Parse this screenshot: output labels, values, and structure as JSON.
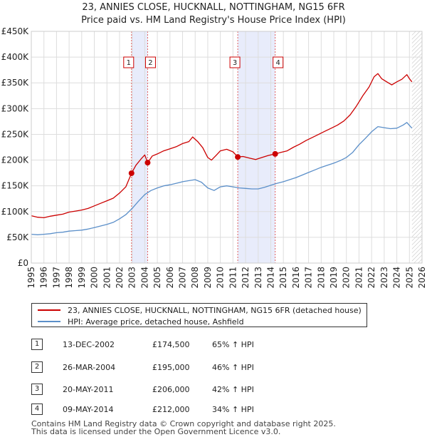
{
  "chart_data": {
    "type": "line",
    "title": "23, ANNIES CLOSE, HUCKNALL, NOTTINGHAM, NG15 6FR",
    "subtitle": "Price paid vs. HM Land Registry's House Price Index (HPI)",
    "xlabel": "",
    "ylabel": "",
    "xlim": [
      1995,
      2026
    ],
    "ylim": [
      0,
      450000
    ],
    "y_ticks": [
      {
        "value": 0,
        "label": "£0"
      },
      {
        "value": 50000,
        "label": "£50K"
      },
      {
        "value": 100000,
        "label": "£100K"
      },
      {
        "value": 150000,
        "label": "£150K"
      },
      {
        "value": 200000,
        "label": "£200K"
      },
      {
        "value": 250000,
        "label": "£250K"
      },
      {
        "value": 300000,
        "label": "£300K"
      },
      {
        "value": 350000,
        "label": "£350K"
      },
      {
        "value": 400000,
        "label": "£400K"
      },
      {
        "value": 450000,
        "label": "£450K"
      }
    ],
    "x_ticks": [
      "1995",
      "1996",
      "1997",
      "1998",
      "1999",
      "2000",
      "2001",
      "2002",
      "2003",
      "2004",
      "2005",
      "2006",
      "2007",
      "2008",
      "2009",
      "2010",
      "2011",
      "2012",
      "2013",
      "2014",
      "2015",
      "2016",
      "2017",
      "2018",
      "2019",
      "2020",
      "2021",
      "2022",
      "2023",
      "2024",
      "2025",
      "2026"
    ],
    "grid": true,
    "series": [
      {
        "name": "23, ANNIES CLOSE, HUCKNALL, NOTTINGHAM, NG15 6FR (detached house)",
        "color": "#cc0000",
        "points": [
          [
            1995.0,
            92000
          ],
          [
            1995.5,
            89000
          ],
          [
            1996.0,
            88000
          ],
          [
            1996.5,
            91000
          ],
          [
            1997.0,
            93000
          ],
          [
            1997.5,
            95000
          ],
          [
            1998.0,
            99000
          ],
          [
            1998.5,
            101000
          ],
          [
            1999.0,
            103000
          ],
          [
            1999.5,
            106000
          ],
          [
            2000.0,
            111000
          ],
          [
            2000.5,
            116000
          ],
          [
            2001.0,
            121000
          ],
          [
            2001.5,
            126000
          ],
          [
            2002.0,
            136000
          ],
          [
            2002.5,
            148000
          ],
          [
            2002.95,
            174500
          ],
          [
            2003.3,
            190000
          ],
          [
            2003.7,
            202000
          ],
          [
            2004.0,
            210000
          ],
          [
            2004.23,
            195000
          ],
          [
            2004.6,
            208000
          ],
          [
            2005.0,
            212000
          ],
          [
            2005.5,
            218000
          ],
          [
            2006.0,
            222000
          ],
          [
            2006.5,
            226000
          ],
          [
            2007.0,
            232000
          ],
          [
            2007.5,
            236000
          ],
          [
            2007.8,
            245000
          ],
          [
            2008.2,
            236000
          ],
          [
            2008.6,
            224000
          ],
          [
            2009.0,
            205000
          ],
          [
            2009.3,
            200000
          ],
          [
            2009.7,
            210000
          ],
          [
            2010.0,
            218000
          ],
          [
            2010.5,
            221000
          ],
          [
            2011.0,
            216000
          ],
          [
            2011.38,
            206000
          ],
          [
            2011.8,
            207000
          ],
          [
            2012.3,
            204000
          ],
          [
            2012.8,
            201000
          ],
          [
            2013.3,
            205000
          ],
          [
            2013.8,
            209000
          ],
          [
            2014.35,
            212000
          ],
          [
            2014.8,
            215000
          ],
          [
            2015.3,
            218000
          ],
          [
            2015.8,
            225000
          ],
          [
            2016.3,
            231000
          ],
          [
            2016.8,
            238000
          ],
          [
            2017.3,
            244000
          ],
          [
            2017.8,
            250000
          ],
          [
            2018.3,
            256000
          ],
          [
            2018.8,
            262000
          ],
          [
            2019.3,
            268000
          ],
          [
            2019.8,
            276000
          ],
          [
            2020.3,
            288000
          ],
          [
            2020.8,
            305000
          ],
          [
            2021.3,
            325000
          ],
          [
            2021.8,
            342000
          ],
          [
            2022.2,
            362000
          ],
          [
            2022.5,
            368000
          ],
          [
            2022.8,
            358000
          ],
          [
            2023.2,
            352000
          ],
          [
            2023.6,
            346000
          ],
          [
            2024.0,
            352000
          ],
          [
            2024.4,
            357000
          ],
          [
            2024.8,
            366000
          ],
          [
            2025.0,
            358000
          ],
          [
            2025.2,
            352000
          ]
        ]
      },
      {
        "name": "HPI: Average price, detached house, Ashfield",
        "color": "#5b8fc9",
        "points": [
          [
            1995.0,
            56000
          ],
          [
            1995.5,
            55000
          ],
          [
            1996.0,
            56000
          ],
          [
            1996.5,
            57000
          ],
          [
            1997.0,
            59000
          ],
          [
            1997.5,
            60000
          ],
          [
            1998.0,
            62000
          ],
          [
            1998.5,
            63000
          ],
          [
            1999.0,
            64000
          ],
          [
            1999.5,
            66000
          ],
          [
            2000.0,
            69000
          ],
          [
            2000.5,
            72000
          ],
          [
            2001.0,
            75000
          ],
          [
            2001.5,
            79000
          ],
          [
            2002.0,
            86000
          ],
          [
            2002.5,
            94000
          ],
          [
            2003.0,
            106000
          ],
          [
            2003.5,
            120000
          ],
          [
            2004.0,
            133000
          ],
          [
            2004.5,
            141000
          ],
          [
            2005.0,
            146000
          ],
          [
            2005.5,
            150000
          ],
          [
            2006.0,
            152000
          ],
          [
            2006.5,
            155000
          ],
          [
            2007.0,
            158000
          ],
          [
            2007.5,
            160000
          ],
          [
            2008.0,
            162000
          ],
          [
            2008.5,
            157000
          ],
          [
            2009.0,
            146000
          ],
          [
            2009.5,
            141000
          ],
          [
            2010.0,
            148000
          ],
          [
            2010.5,
            150000
          ],
          [
            2011.0,
            148000
          ],
          [
            2011.5,
            146000
          ],
          [
            2012.0,
            145000
          ],
          [
            2012.5,
            144000
          ],
          [
            2013.0,
            144000
          ],
          [
            2013.5,
            147000
          ],
          [
            2014.0,
            151000
          ],
          [
            2014.5,
            155000
          ],
          [
            2015.0,
            158000
          ],
          [
            2015.5,
            162000
          ],
          [
            2016.0,
            166000
          ],
          [
            2016.5,
            171000
          ],
          [
            2017.0,
            176000
          ],
          [
            2017.5,
            181000
          ],
          [
            2018.0,
            186000
          ],
          [
            2018.5,
            190000
          ],
          [
            2019.0,
            194000
          ],
          [
            2019.5,
            199000
          ],
          [
            2020.0,
            205000
          ],
          [
            2020.5,
            215000
          ],
          [
            2021.0,
            230000
          ],
          [
            2021.5,
            242000
          ],
          [
            2022.0,
            255000
          ],
          [
            2022.5,
            265000
          ],
          [
            2023.0,
            263000
          ],
          [
            2023.5,
            261000
          ],
          [
            2024.0,
            262000
          ],
          [
            2024.5,
            268000
          ],
          [
            2024.8,
            273000
          ],
          [
            2025.2,
            262000
          ]
        ]
      }
    ],
    "sale_markers": [
      {
        "label": "1",
        "x": 2002.95,
        "value": 174500
      },
      {
        "label": "2",
        "x": 2004.23,
        "value": 195000
      },
      {
        "label": "3",
        "x": 2011.38,
        "value": 206000
      },
      {
        "label": "4",
        "x": 2014.35,
        "value": 212000
      }
    ],
    "shaded_periods": [
      [
        2002.95,
        2004.23
      ],
      [
        2011.38,
        2014.35
      ]
    ],
    "hatched_region": [
      2025.2,
      2026
    ]
  },
  "legend": {
    "entries": [
      {
        "label": "23, ANNIES CLOSE, HUCKNALL, NOTTINGHAM, NG15 6FR (detached house)",
        "color": "#cc0000"
      },
      {
        "label": "HPI: Average price, detached house, Ashfield",
        "color": "#5b8fc9"
      }
    ]
  },
  "transactions": [
    {
      "num": "1",
      "date": "13-DEC-2002",
      "price": "£174,500",
      "hpi": "65% ↑ HPI"
    },
    {
      "num": "2",
      "date": "26-MAR-2004",
      "price": "£195,000",
      "hpi": "46% ↑ HPI"
    },
    {
      "num": "3",
      "date": "20-MAY-2011",
      "price": "£206,000",
      "hpi": "42% ↑ HPI"
    },
    {
      "num": "4",
      "date": "09-MAY-2014",
      "price": "£212,000",
      "hpi": "34% ↑ HPI"
    }
  ],
  "footer": {
    "line1": "Contains HM Land Registry data © Crown copyright and database right 2025.",
    "line2": "This data is licensed under the Open Government Licence v3.0."
  }
}
